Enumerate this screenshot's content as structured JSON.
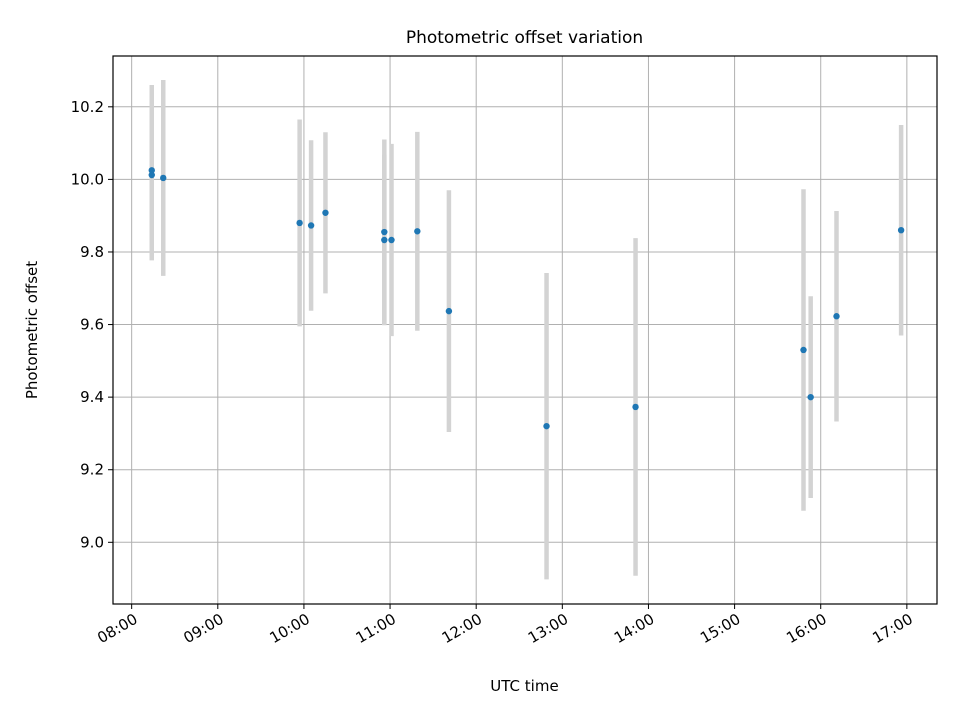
{
  "chart_data": {
    "type": "scatter",
    "title": "Photometric offset variation",
    "xlabel": "UTC time",
    "ylabel": "Photometric offset",
    "x_tick_labels": [
      "08:00",
      "09:00",
      "10:00",
      "11:00",
      "12:00",
      "13:00",
      "14:00",
      "15:00",
      "16:00",
      "17:00"
    ],
    "y_tick_labels": [
      "9.0",
      "9.2",
      "9.4",
      "9.6",
      "9.8",
      "10.0",
      "10.2"
    ],
    "y_ticks": [
      9.0,
      9.2,
      9.4,
      9.6,
      9.8,
      10.0,
      10.2
    ],
    "xlim": [
      "07:47",
      "17:21"
    ],
    "ylim": [
      8.83,
      10.34
    ],
    "grid": true,
    "colors": {
      "point": "#1f77b4",
      "errorbar": "#d3d3d3",
      "grid": "#b0b0b0"
    },
    "points": [
      {
        "x": "08:14",
        "y": 10.025,
        "err": 0.235
      },
      {
        "x": "08:14",
        "y": 10.012,
        "err": 0.235
      },
      {
        "x": "08:22",
        "y": 10.004,
        "err": 0.27
      },
      {
        "x": "09:57",
        "y": 9.88,
        "err": 0.285
      },
      {
        "x": "10:05",
        "y": 9.873,
        "err": 0.235
      },
      {
        "x": "10:15",
        "y": 9.908,
        "err": 0.222
      },
      {
        "x": "10:56",
        "y": 9.855,
        "err": 0.255
      },
      {
        "x": "10:56",
        "y": 9.833,
        "err": 0.235
      },
      {
        "x": "11:01",
        "y": 9.833,
        "err": 0.265
      },
      {
        "x": "11:19",
        "y": 9.857,
        "err": 0.274
      },
      {
        "x": "11:41",
        "y": 9.637,
        "err": 0.333
      },
      {
        "x": "12:49",
        "y": 9.32,
        "err": 0.422
      },
      {
        "x": "13:51",
        "y": 9.373,
        "err": 0.465
      },
      {
        "x": "15:48",
        "y": 9.53,
        "err": 0.443
      },
      {
        "x": "15:53",
        "y": 9.4,
        "err": 0.278
      },
      {
        "x": "16:11",
        "y": 9.623,
        "err": 0.29
      },
      {
        "x": "16:56",
        "y": 9.86,
        "err": 0.29
      }
    ]
  }
}
